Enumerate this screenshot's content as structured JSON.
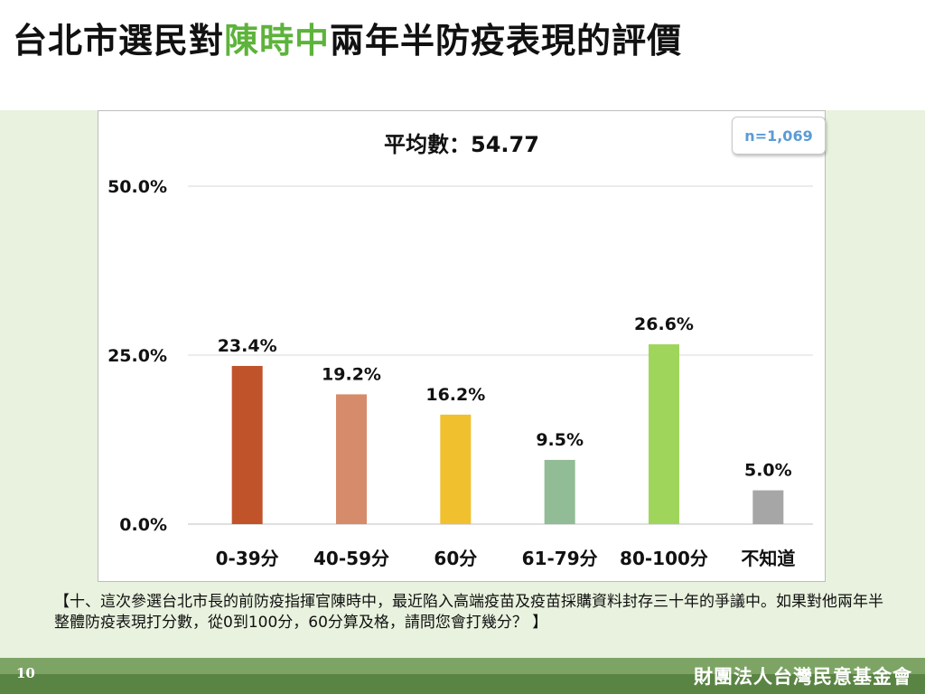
{
  "header": {
    "title_prefix": "台北市選民對",
    "title_highlight": "陳時中",
    "title_suffix": "兩年半防疫表現的評價"
  },
  "colors": {
    "highlight": "#5db33b",
    "panel_background": "#e8f2de",
    "footer": "#7da465",
    "sample_size": "#5b9bd5"
  },
  "sample_size": "n=1,069",
  "chart_data": {
    "type": "bar",
    "subtitle": "平均數：54.77",
    "categories": [
      "0-39分",
      "40-59分",
      "60分",
      "61-79分",
      "80-100分",
      "不知道"
    ],
    "values": [
      23.4,
      19.2,
      16.2,
      9.5,
      26.6,
      5.0
    ],
    "value_labels": [
      "23.4%",
      "19.2%",
      "16.2%",
      "9.5%",
      "26.6%",
      "5.0%"
    ],
    "bar_colors": [
      "#c0532a",
      "#d68b6a",
      "#f0c02f",
      "#91bc96",
      "#a0d55c",
      "#a6a6a6"
    ],
    "ylim": [
      0,
      50
    ],
    "yticks": [
      0,
      25,
      50
    ],
    "ytick_labels": [
      "0.0%",
      "25.0%",
      "50.0%"
    ],
    "grid": true,
    "legend": "none"
  },
  "footnote": "【十、這次參選台北市長的前防疫指揮官陳時中，最近陷入高端疫苗及疫苗採購資料封存三十年的爭議中。如果對他兩年半整體防疫表現打分數，從0到100分，60分算及格，請問您會打幾分？ 】",
  "footer": {
    "page_number": "10",
    "organization": "財團法人台灣民意基金會"
  }
}
